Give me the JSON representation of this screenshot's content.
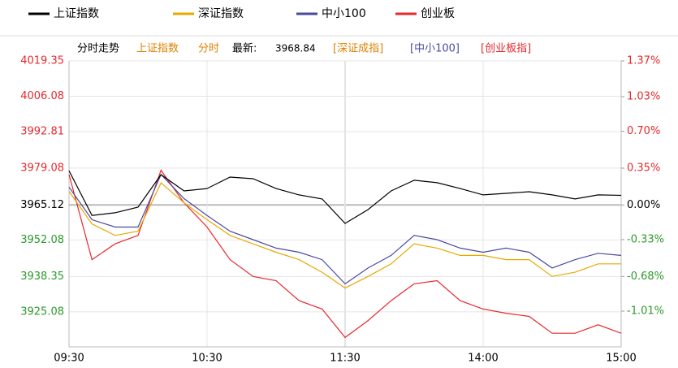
{
  "chart_data": {
    "type": "line",
    "legend_position": "top",
    "header": {
      "label": "分时走势",
      "index": "上证指数",
      "mode": "分时",
      "latest_label": "最新:",
      "latest": 3968.84,
      "links": [
        "[深证成指]",
        "[中小100]",
        "[创业板指]"
      ]
    },
    "up_color": "#e8282d",
    "down_color": "#2a9a2a",
    "grid": true,
    "x": [
      0,
      10,
      20,
      30,
      40,
      50,
      60,
      70,
      80,
      90,
      100,
      110,
      120,
      130,
      140,
      150,
      160,
      170,
      180,
      190,
      200,
      210,
      220,
      230,
      240
    ],
    "xlim": [
      0,
      240
    ],
    "xticks": [
      {
        "value": 0,
        "label": "09:30"
      },
      {
        "value": 60,
        "label": "10:30"
      },
      {
        "value": 120,
        "label": "11:30"
      },
      {
        "value": 180,
        "label": "14:00"
      },
      {
        "value": 240,
        "label": "15:00"
      }
    ],
    "ylim": [
      3911.9,
      4019.35
    ],
    "yticks": [
      4019.35,
      4006.08,
      3992.81,
      3979.08,
      3965.12,
      3952.08,
      3938.35,
      3925.08
    ],
    "y2lim": [
      -1.35,
      1.37
    ],
    "y2ticks": [
      {
        "value": 1.37,
        "label": "1.37%"
      },
      {
        "value": 1.03,
        "label": "1.03%"
      },
      {
        "value": 0.7,
        "label": "0.70%"
      },
      {
        "value": 0.35,
        "label": "0.35%"
      },
      {
        "value": 0,
        "label": "0.00%"
      },
      {
        "value": -0.33,
        "label": "-0.33%"
      },
      {
        "value": -0.68,
        "label": "-0.68%"
      },
      {
        "value": -1.01,
        "label": "-1.01%"
      }
    ],
    "series": [
      {
        "name": "上证指数",
        "color": "#000000",
        "axis": "y",
        "values": [
          3978.1,
          3961.3,
          3962.3,
          3964.4,
          3976.6,
          3970.5,
          3971.4,
          3975.7,
          3975.1,
          3971.4,
          3969.0,
          3967.5,
          3958.3,
          3963.5,
          3970.5,
          3974.5,
          3973.6,
          3971.4,
          3969.0,
          3969.6,
          3970.2,
          3969.0,
          3967.5,
          3969.0,
          3968.84
        ]
      },
      {
        "name": "深证指数",
        "color": "#e8a800",
        "axis": "y2",
        "values": [
          0.13,
          -0.18,
          -0.29,
          -0.25,
          0.21,
          0.02,
          -0.14,
          -0.29,
          -0.37,
          -0.45,
          -0.52,
          -0.64,
          -0.79,
          -0.68,
          -0.56,
          -0.37,
          -0.41,
          -0.48,
          -0.48,
          -0.52,
          -0.52,
          -0.68,
          -0.64,
          -0.56,
          -0.56
        ]
      },
      {
        "name": "中小100",
        "color": "#4a4aa0",
        "axis": "y2",
        "values": [
          0.17,
          -0.14,
          -0.21,
          -0.21,
          0.29,
          0.06,
          -0.1,
          -0.25,
          -0.33,
          -0.41,
          -0.45,
          -0.52,
          -0.75,
          -0.6,
          -0.48,
          -0.29,
          -0.33,
          -0.41,
          -0.45,
          -0.41,
          -0.45,
          -0.6,
          -0.52,
          -0.46,
          -0.48
        ]
      },
      {
        "name": "创业板",
        "color": "#e8282d",
        "axis": "y2",
        "values": [
          0.29,
          -0.52,
          -0.37,
          -0.29,
          0.33,
          0.02,
          -0.21,
          -0.52,
          -0.68,
          -0.72,
          -0.91,
          -0.99,
          -1.26,
          -1.1,
          -0.91,
          -0.75,
          -0.72,
          -0.91,
          -0.99,
          -1.03,
          -1.06,
          -1.22,
          -1.22,
          -1.14,
          -1.22
        ]
      }
    ]
  }
}
